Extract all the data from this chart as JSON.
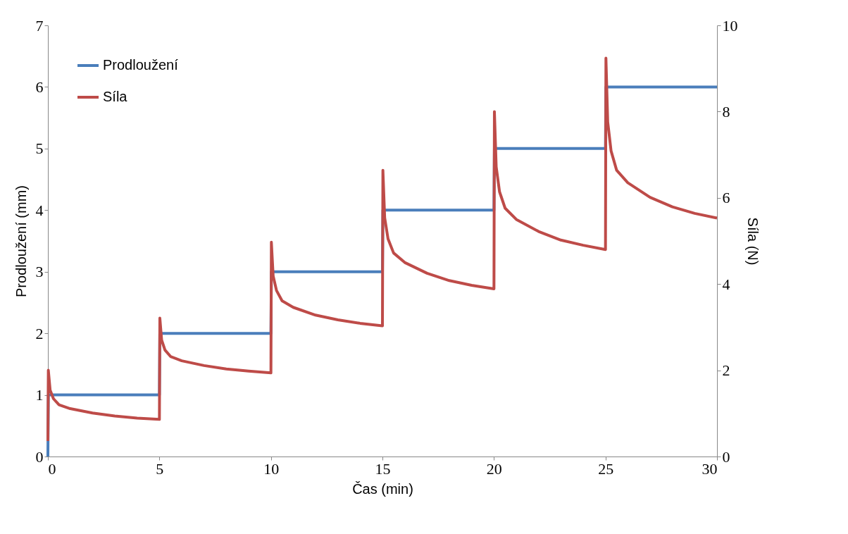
{
  "chart_data": {
    "type": "line",
    "xlabel": "Čas (min)",
    "ylabel": "Prodloužení (mm)",
    "y2label": "Síla (N)",
    "xlim": [
      0,
      30
    ],
    "xticks": [
      0,
      5,
      10,
      15,
      20,
      25,
      30
    ],
    "ylim": [
      0,
      7
    ],
    "yticks": [
      0,
      1,
      2,
      3,
      4,
      5,
      6,
      7
    ],
    "y2lim": [
      0,
      10
    ],
    "y2ticks": [
      0,
      2,
      4,
      6,
      8,
      10
    ],
    "grid": false,
    "legend": "top left",
    "marker": "none",
    "line_style": "solid",
    "series": [
      {
        "name": "Prodloužení",
        "color": "#4a7ebb",
        "x": [
          0,
          0.02,
          5,
          5.02,
          10,
          10.02,
          15,
          15.02,
          20,
          20.02,
          25,
          25.02,
          30
        ],
        "values": [
          0,
          1,
          1,
          2,
          2,
          3,
          3,
          4,
          4,
          5,
          5,
          6,
          6
        ]
      },
      {
        "name": "Síla",
        "color": "#be4b48",
        "axis": "y2",
        "x": [
          0,
          0.02,
          0.1,
          0.25,
          0.5,
          1,
          2,
          3,
          4,
          5,
          5.02,
          5.1,
          5.25,
          5.5,
          6,
          7,
          8,
          9,
          10,
          10.02,
          10.1,
          10.25,
          10.5,
          11,
          12,
          13,
          14,
          15,
          15.02,
          15.1,
          15.25,
          15.5,
          16,
          17,
          18,
          19,
          20,
          20.02,
          20.1,
          20.25,
          20.5,
          21,
          22,
          23,
          24,
          25,
          25.02,
          25.1,
          25.25,
          25.5,
          26,
          27,
          28,
          29,
          30
        ],
        "values": [
          0.36,
          2.0,
          1.54,
          1.34,
          1.2,
          1.11,
          1.01,
          0.94,
          0.89,
          0.86,
          3.21,
          2.7,
          2.47,
          2.32,
          2.22,
          2.11,
          2.03,
          1.98,
          1.94,
          4.97,
          4.19,
          3.85,
          3.61,
          3.46,
          3.28,
          3.17,
          3.09,
          3.03,
          6.64,
          5.54,
          5.05,
          4.72,
          4.5,
          4.25,
          4.08,
          3.97,
          3.89,
          8.0,
          6.72,
          6.14,
          5.76,
          5.5,
          5.22,
          5.02,
          4.9,
          4.8,
          9.24,
          7.76,
          7.09,
          6.64,
          6.35,
          6.01,
          5.79,
          5.64,
          5.53
        ]
      }
    ]
  }
}
